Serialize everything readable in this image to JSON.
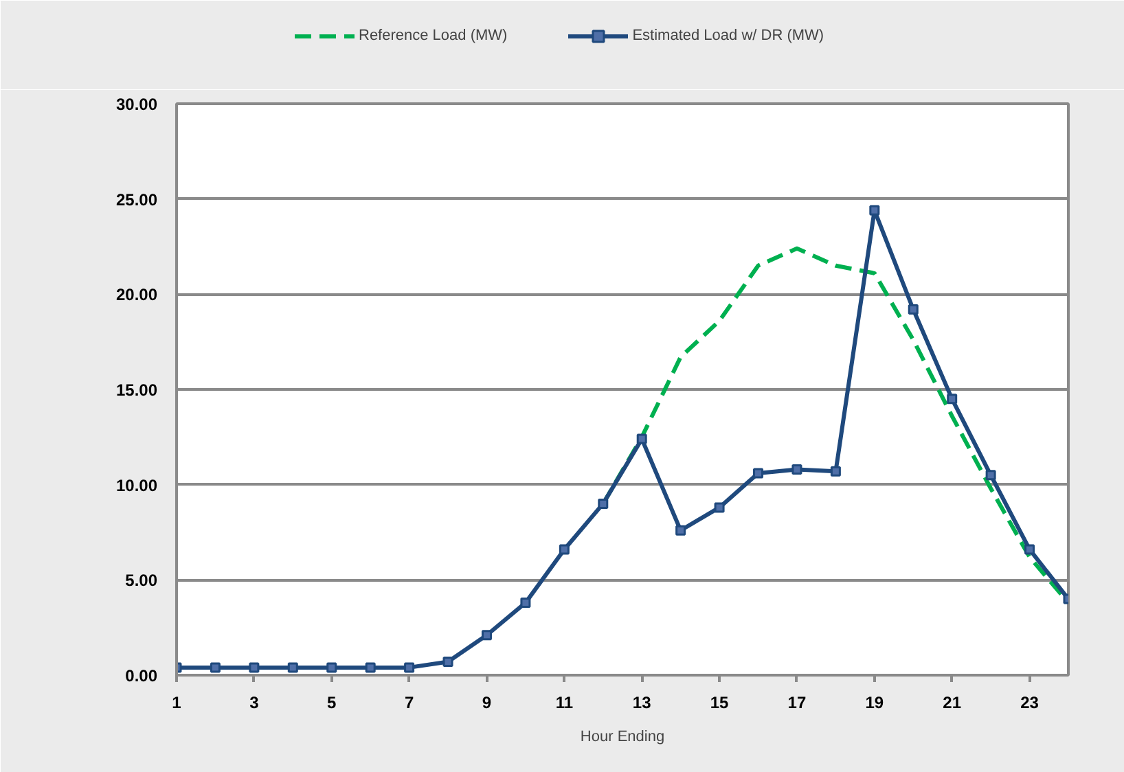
{
  "chart_data": {
    "type": "line",
    "xlabel": "Hour Ending",
    "x": [
      1,
      2,
      3,
      4,
      5,
      6,
      7,
      8,
      9,
      10,
      11,
      12,
      13,
      14,
      15,
      16,
      17,
      18,
      19,
      20,
      21,
      22,
      23,
      24
    ],
    "xlim": [
      1,
      24
    ],
    "xticks": [
      1,
      3,
      5,
      7,
      9,
      11,
      13,
      15,
      17,
      19,
      21,
      23
    ],
    "ylim": [
      0,
      30
    ],
    "yticks": [
      {
        "value": 0,
        "label": "0.00"
      },
      {
        "value": 5,
        "label": "5.00"
      },
      {
        "value": 10,
        "label": "10.00"
      },
      {
        "value": 15,
        "label": "15.00"
      },
      {
        "value": 20,
        "label": "20.00"
      },
      {
        "value": 25,
        "label": "25.00"
      },
      {
        "value": 30,
        "label": "30.00"
      }
    ],
    "grid": "y",
    "legend": "top",
    "series": [
      {
        "name": "Reference Load (MW)",
        "color": "#00b050",
        "line_style": "dashed",
        "marker": "none",
        "values": [
          null,
          null,
          null,
          null,
          null,
          null,
          null,
          null,
          null,
          null,
          null,
          9.0,
          12.5,
          16.7,
          18.6,
          21.5,
          22.4,
          21.5,
          21.1,
          17.6,
          13.6,
          9.8,
          6.2,
          3.8
        ]
      },
      {
        "name": "Estimated Load w/ DR (MW)",
        "color": "#1f497d",
        "line_style": "solid",
        "marker": "square",
        "values": [
          0.4,
          0.4,
          0.4,
          0.4,
          0.4,
          0.4,
          0.4,
          0.7,
          2.1,
          3.8,
          6.6,
          9.0,
          12.4,
          7.6,
          8.8,
          10.6,
          10.8,
          10.7,
          24.4,
          19.2,
          14.5,
          10.5,
          6.6,
          4.0
        ]
      }
    ]
  }
}
